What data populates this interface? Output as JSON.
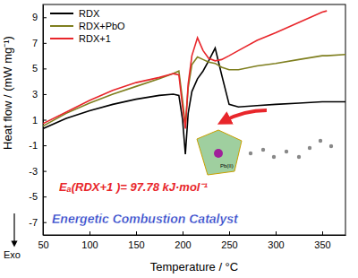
{
  "chart_data": {
    "type": "line",
    "x_label": "Temperature / °C",
    "y_label": "Heat flow / (mW mg⁻¹)",
    "x": [
      50,
      75,
      100,
      125,
      150,
      175,
      190,
      196,
      200,
      203,
      206,
      210,
      216,
      222,
      228,
      235,
      242,
      250,
      260,
      280,
      300,
      325,
      350,
      355,
      375
    ],
    "series": [
      {
        "name": "RDX",
        "color": "#000000",
        "values": [
          0.3,
          1.1,
          1.7,
          2.2,
          2.6,
          2.9,
          3.0,
          2.9,
          1.0,
          -1.7,
          1.5,
          3.2,
          4.2,
          4.8,
          5.6,
          6.6,
          4.5,
          2.2,
          2.0,
          2.1,
          2.2,
          2.3,
          2.4,
          2.4,
          2.4
        ]
      },
      {
        "name": "RDX+PbO",
        "color": "#7f7f1f",
        "values": [
          0.5,
          1.5,
          2.3,
          3.0,
          3.6,
          4.2,
          4.6,
          4.8,
          2.5,
          0.5,
          3.5,
          5.3,
          5.9,
          5.7,
          5.5,
          5.4,
          5.1,
          4.9,
          4.9,
          5.2,
          5.4,
          5.7,
          6.0,
          6.0,
          6.1
        ]
      },
      {
        "name": "RDX+1",
        "color": "#e8262b",
        "values": [
          0.7,
          1.6,
          2.5,
          3.3,
          3.9,
          4.3,
          4.6,
          4.5,
          2.0,
          0.3,
          3.8,
          6.0,
          7.4,
          6.4,
          5.8,
          5.6,
          5.7,
          6.0,
          6.4,
          7.2,
          7.8,
          8.6,
          9.4,
          9.5,
          null
        ]
      }
    ],
    "xlim": [
      50,
      375
    ],
    "xticks": [
      50,
      100,
      150,
      200,
      250,
      300,
      350
    ],
    "ylim": [
      -8,
      10
    ],
    "yticks": [
      -7,
      -5,
      -3,
      -1,
      1,
      3,
      5,
      7,
      9
    ],
    "legend": "top-left",
    "annotations": [
      "Eₐ(RDX+1 )= 97.78 kJ·mol⁻¹",
      "Energetic Combustion Catalyst",
      "Exo",
      "Pb(II)"
    ]
  }
}
